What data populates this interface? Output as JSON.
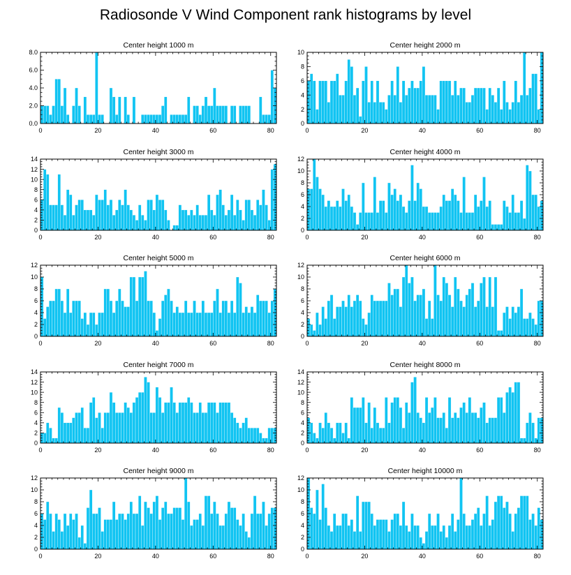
{
  "title": "Radiosonde V Wind Component rank histograms by level",
  "colors": {
    "bar": "#11c4f2",
    "bar_edge": "#ffffff",
    "axis": "#000000"
  },
  "chart_data": [
    {
      "type": "bar",
      "title": "Center height 1000 m",
      "xlim": [
        0,
        82
      ],
      "ylim": [
        0,
        8
      ],
      "xticks": [
        0,
        20,
        40,
        60,
        80
      ],
      "yticks": [
        0,
        2,
        4,
        6,
        8
      ],
      "ytick_labels": [
        "0.0",
        "2.0",
        "4.0",
        "6.0",
        "8.0"
      ],
      "values": [
        2,
        2,
        2,
        1,
        2,
        5,
        5,
        2,
        4,
        1,
        0,
        2,
        4,
        2,
        0,
        3,
        1,
        1,
        1,
        8,
        1,
        1,
        0,
        0,
        4,
        3,
        1,
        3,
        0,
        3,
        1,
        0,
        3,
        0,
        0,
        1,
        1,
        1,
        1,
        1,
        1,
        1,
        2,
        3,
        0,
        1,
        1,
        1,
        1,
        1,
        1,
        3,
        0,
        2,
        2,
        1,
        2,
        3,
        2,
        2,
        4,
        2,
        2,
        2,
        2,
        0,
        2,
        2,
        0,
        2,
        2,
        2,
        2,
        0,
        0,
        0,
        3,
        1,
        1,
        1,
        6,
        4
      ]
    },
    {
      "type": "bar",
      "title": "Center height 2000 m",
      "xlim": [
        0,
        82
      ],
      "ylim": [
        0,
        10
      ],
      "xticks": [
        0,
        20,
        40,
        60,
        80
      ],
      "yticks": [
        0,
        2,
        4,
        6,
        8,
        10
      ],
      "ytick_labels": [
        "0",
        "2",
        "4",
        "6",
        "8",
        "10"
      ],
      "values": [
        6,
        7,
        6,
        2,
        6,
        6,
        6,
        3,
        6,
        6,
        7,
        4,
        4,
        6,
        9,
        8,
        4,
        5,
        1,
        6,
        8,
        3,
        6,
        3,
        6,
        3,
        3,
        2,
        4,
        6,
        4,
        8,
        3,
        6,
        4,
        5,
        6,
        5,
        5,
        6,
        8,
        4,
        4,
        4,
        4,
        2,
        6,
        6,
        6,
        6,
        4,
        6,
        4,
        5,
        5,
        3,
        3,
        4,
        5,
        5,
        5,
        5,
        2,
        5,
        4,
        3,
        5,
        2,
        6,
        3,
        2,
        3,
        6,
        3,
        4,
        10,
        4,
        5,
        7,
        7,
        2,
        10
      ]
    },
    {
      "type": "bar",
      "title": "Center height 3000 m",
      "xlim": [
        0,
        82
      ],
      "ylim": [
        0,
        14
      ],
      "xticks": [
        0,
        20,
        40,
        60,
        80
      ],
      "yticks": [
        0,
        2,
        4,
        6,
        8,
        10,
        12,
        14
      ],
      "ytick_labels": [
        "0",
        "2",
        "4",
        "6",
        "8",
        "10",
        "12",
        "14"
      ],
      "values": [
        6,
        12,
        11,
        5,
        5,
        5,
        11,
        5,
        3,
        8,
        7,
        3,
        5,
        6,
        6,
        4,
        4,
        4,
        3,
        7,
        6,
        6,
        8,
        5,
        6,
        3,
        4,
        6,
        5,
        8,
        5,
        4,
        3,
        2,
        5,
        3,
        2,
        6,
        6,
        4,
        7,
        6,
        6,
        4,
        2,
        0,
        1,
        1,
        5,
        4,
        4,
        3,
        4,
        3,
        5,
        3,
        3,
        3,
        7,
        4,
        3,
        7,
        8,
        5,
        3,
        4,
        7,
        3,
        6,
        4,
        2,
        6,
        6,
        4,
        3,
        6,
        5,
        8,
        5,
        2,
        12,
        13
      ]
    },
    {
      "type": "bar",
      "title": "Center height 4000 m",
      "xlim": [
        0,
        82
      ],
      "ylim": [
        0,
        12
      ],
      "xticks": [
        0,
        20,
        40,
        60,
        80
      ],
      "yticks": [
        0,
        2,
        4,
        6,
        8,
        10,
        12
      ],
      "ytick_labels": [
        "0",
        "2",
        "4",
        "6",
        "8",
        "10",
        "12"
      ],
      "values": [
        7,
        7,
        12,
        9,
        7,
        6,
        4,
        5,
        4,
        4,
        5,
        4,
        7,
        5,
        6,
        4,
        3,
        1,
        3,
        8,
        3,
        3,
        3,
        9,
        3,
        5,
        5,
        3,
        8,
        6,
        7,
        5,
        6,
        4,
        3,
        5,
        11,
        5,
        8,
        7,
        4,
        4,
        3,
        3,
        3,
        3,
        4,
        6,
        5,
        5,
        7,
        6,
        5,
        3,
        9,
        3,
        3,
        3,
        6,
        4,
        5,
        9,
        4,
        5,
        1,
        1,
        1,
        1,
        5,
        4,
        3,
        6,
        3,
        3,
        5,
        2,
        11,
        10,
        6,
        6,
        4,
        5
      ]
    },
    {
      "type": "bar",
      "title": "Center height 5000 m",
      "xlim": [
        0,
        82
      ],
      "ylim": [
        0,
        12
      ],
      "xticks": [
        0,
        20,
        40,
        60,
        80
      ],
      "yticks": [
        0,
        2,
        4,
        6,
        8,
        10,
        12
      ],
      "ytick_labels": [
        "0",
        "2",
        "4",
        "6",
        "8",
        "10",
        "12"
      ],
      "values": [
        10,
        3,
        5,
        6,
        6,
        8,
        8,
        6,
        4,
        8,
        4,
        6,
        6,
        6,
        3,
        4,
        2,
        4,
        4,
        2,
        4,
        4,
        8,
        8,
        6,
        4,
        6,
        8,
        6,
        5,
        5,
        10,
        10,
        6,
        10,
        10,
        11,
        6,
        6,
        4,
        1,
        3,
        6,
        7,
        8,
        6,
        4,
        5,
        4,
        4,
        6,
        4,
        4,
        6,
        4,
        4,
        6,
        4,
        4,
        4,
        6,
        8,
        4,
        6,
        6,
        4,
        6,
        4,
        10,
        9,
        4,
        5,
        4,
        5,
        4,
        7,
        6,
        6,
        6,
        4,
        6,
        8
      ]
    },
    {
      "type": "bar",
      "title": "Center height 6000 m",
      "xlim": [
        0,
        82
      ],
      "ylim": [
        0,
        12
      ],
      "xticks": [
        0,
        20,
        40,
        60,
        80
      ],
      "yticks": [
        0,
        2,
        4,
        6,
        8,
        10,
        12
      ],
      "ytick_labels": [
        "0",
        "2",
        "4",
        "6",
        "8",
        "10",
        "12"
      ],
      "values": [
        3,
        2,
        1,
        4,
        2,
        5,
        3,
        6,
        7,
        3,
        5,
        5,
        6,
        5,
        7,
        5,
        6,
        7,
        6,
        3,
        2,
        4,
        7,
        6,
        6,
        6,
        6,
        6,
        9,
        7,
        8,
        8,
        5,
        10,
        12,
        9,
        10,
        6,
        7,
        7,
        8,
        3,
        6,
        3,
        12,
        7,
        6,
        10,
        9,
        7,
        5,
        10,
        8,
        6,
        5,
        7,
        8,
        9,
        5,
        6,
        9,
        10,
        5,
        10,
        5,
        10,
        1,
        1,
        4,
        5,
        3,
        5,
        4,
        5,
        8,
        3,
        3,
        4,
        3,
        2,
        6,
        6
      ]
    },
    {
      "type": "bar",
      "title": "Center height 7000 m",
      "xlim": [
        0,
        82
      ],
      "ylim": [
        0,
        14
      ],
      "xticks": [
        0,
        20,
        40,
        60,
        80
      ],
      "yticks": [
        0,
        2,
        4,
        6,
        8,
        10,
        12,
        14
      ],
      "ytick_labels": [
        "0",
        "2",
        "4",
        "6",
        "8",
        "10",
        "12",
        "14"
      ],
      "values": [
        2,
        2,
        4,
        3,
        1,
        1,
        7,
        6,
        4,
        4,
        4,
        5,
        6,
        6,
        7,
        3,
        3,
        8,
        9,
        5,
        6,
        3,
        6,
        6,
        10,
        8,
        6,
        6,
        6,
        8,
        7,
        6,
        8,
        9,
        10,
        10,
        13,
        12,
        6,
        6,
        11,
        9,
        6,
        8,
        8,
        11,
        8,
        6,
        8,
        8,
        8,
        9,
        8,
        6,
        6,
        8,
        6,
        6,
        8,
        8,
        8,
        6,
        8,
        8,
        8,
        8,
        6,
        5,
        4,
        3,
        4,
        5,
        3,
        3,
        3,
        3,
        2,
        1,
        1,
        3,
        3,
        3
      ]
    },
    {
      "type": "bar",
      "title": "Center height 8000 m",
      "xlim": [
        0,
        82
      ],
      "ylim": [
        0,
        14
      ],
      "xticks": [
        0,
        20,
        40,
        60,
        80
      ],
      "yticks": [
        0,
        2,
        4,
        6,
        8,
        10,
        12,
        14
      ],
      "ytick_labels": [
        "0",
        "2",
        "4",
        "6",
        "8",
        "10",
        "12",
        "14"
      ],
      "values": [
        5,
        4,
        2,
        1,
        4,
        3,
        6,
        4,
        3,
        1,
        4,
        4,
        2,
        4,
        1,
        9,
        7,
        7,
        7,
        9,
        4,
        8,
        3,
        7,
        4,
        3,
        3,
        9,
        4,
        8,
        9,
        9,
        7,
        3,
        8,
        6,
        12,
        13,
        6,
        5,
        4,
        9,
        6,
        7,
        9,
        5,
        5,
        6,
        3,
        9,
        5,
        6,
        5,
        7,
        8,
        6,
        9,
        6,
        6,
        5,
        7,
        8,
        4,
        5,
        5,
        5,
        9,
        9,
        6,
        10,
        11,
        10,
        12,
        12,
        1,
        1,
        4,
        6,
        4,
        1,
        5,
        5
      ]
    },
    {
      "type": "bar",
      "title": "Center height 9000 m",
      "xlim": [
        0,
        82
      ],
      "ylim": [
        0,
        12
      ],
      "xticks": [
        0,
        20,
        40,
        60,
        80
      ],
      "yticks": [
        0,
        2,
        4,
        6,
        8,
        10,
        12
      ],
      "ytick_labels": [
        "0",
        "2",
        "4",
        "6",
        "8",
        "10",
        "12"
      ],
      "values": [
        6,
        5,
        8,
        6,
        3,
        6,
        5,
        3,
        6,
        4,
        6,
        5,
        6,
        2,
        4,
        1,
        7,
        10,
        6,
        6,
        7,
        3,
        5,
        5,
        5,
        8,
        5,
        6,
        6,
        5,
        6,
        8,
        6,
        6,
        9,
        4,
        8,
        7,
        6,
        8,
        9,
        5,
        7,
        8,
        6,
        6,
        7,
        7,
        7,
        5,
        12,
        8,
        4,
        5,
        5,
        6,
        4,
        9,
        9,
        6,
        8,
        6,
        4,
        4,
        6,
        8,
        7,
        7,
        5,
        4,
        6,
        3,
        2,
        6,
        9,
        6,
        6,
        8,
        4,
        6,
        7,
        7
      ]
    },
    {
      "type": "bar",
      "title": "Center height 10000 m",
      "xlim": [
        0,
        82
      ],
      "ylim": [
        0,
        12
      ],
      "xticks": [
        0,
        20,
        40,
        60,
        80
      ],
      "yticks": [
        0,
        2,
        4,
        6,
        8,
        10,
        12
      ],
      "ytick_labels": [
        "0",
        "2",
        "4",
        "6",
        "8",
        "10",
        "12"
      ],
      "values": [
        12,
        7,
        6,
        10,
        5,
        11,
        7,
        4,
        3,
        6,
        4,
        4,
        6,
        6,
        4,
        5,
        3,
        9,
        3,
        8,
        8,
        8,
        6,
        4,
        5,
        5,
        5,
        5,
        3,
        5,
        6,
        6,
        4,
        8,
        4,
        3,
        6,
        4,
        4,
        2,
        1,
        3,
        6,
        4,
        4,
        6,
        3,
        4,
        2,
        4,
        6,
        3,
        5,
        12,
        6,
        4,
        4,
        5,
        6,
        7,
        4,
        6,
        9,
        4,
        5,
        8,
        9,
        9,
        7,
        8,
        6,
        3,
        6,
        7,
        9,
        9,
        9,
        5,
        6,
        4,
        7,
        5
      ]
    }
  ]
}
